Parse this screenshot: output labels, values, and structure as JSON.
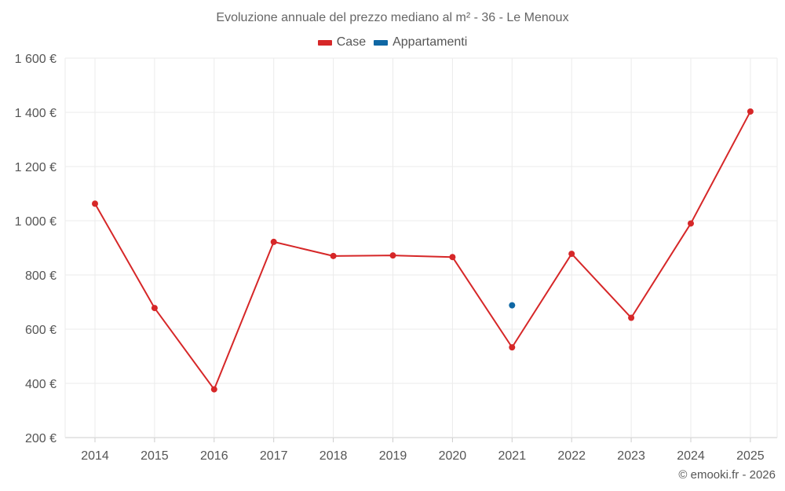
{
  "chart_data": {
    "type": "line",
    "title": "Evoluzione annuale del prezzo mediano al m² - 36 - Le Menoux",
    "xlabel": "",
    "ylabel": "",
    "categories": [
      "2014",
      "2015",
      "2016",
      "2017",
      "2018",
      "2019",
      "2020",
      "2021",
      "2022",
      "2023",
      "2024",
      "2025"
    ],
    "y_ticks": [
      200,
      400,
      600,
      800,
      1000,
      1200,
      1400,
      1600
    ],
    "y_tick_labels": [
      "200 €",
      "400 €",
      "600 €",
      "800 €",
      "1 000 €",
      "1 200 €",
      "1 400 €",
      "1 600 €"
    ],
    "ylim": [
      200,
      1600
    ],
    "grid": true,
    "legend_position": "top-center",
    "series": [
      {
        "name": "Case",
        "color": "#d62728",
        "values": [
          1063,
          678,
          378,
          922,
          870,
          872,
          866,
          533,
          878,
          642,
          990,
          1403
        ]
      },
      {
        "name": "Appartamenti",
        "color": "#0f67a4",
        "values": [
          null,
          null,
          null,
          null,
          null,
          null,
          null,
          688,
          null,
          null,
          null,
          null
        ]
      }
    ]
  },
  "credit": "© emooki.fr - 2026"
}
